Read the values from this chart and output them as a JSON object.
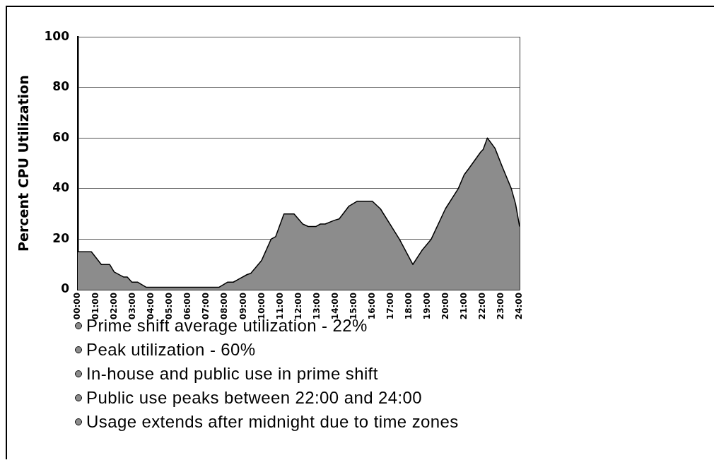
{
  "chart_data": {
    "type": "area",
    "ylabel": "Percent CPU Utilization",
    "x": [
      0,
      0.74,
      1.28,
      1.73,
      1.98,
      2.5,
      2.69,
      2.94,
      3.26,
      3.71,
      7.68,
      8.13,
      8.45,
      8.7,
      9.2,
      9.4,
      9.98,
      10.5,
      10.75,
      11.2,
      11.75,
      12.22,
      12.52,
      12.93,
      13.18,
      13.44,
      13.95,
      14.2,
      14.72,
      15.17,
      16.0,
      16.44,
      17.47,
      18.2,
      18.69,
      19.2,
      19.97,
      20.67,
      20.99,
      21.25,
      21.89,
      22.02,
      22.25,
      22.66,
      23.04,
      23.55,
      23.78,
      24
    ],
    "values": [
      15,
      15,
      10,
      10,
      7,
      5,
      5,
      3,
      3,
      1,
      1,
      3,
      3,
      4,
      6,
      6.5,
      11.5,
      20,
      21,
      30,
      30,
      26,
      25,
      25,
      26,
      26,
      27.5,
      28,
      33,
      35,
      35,
      32,
      20,
      10,
      15.5,
      20,
      32,
      40,
      45.5,
      48,
      54.5,
      55.5,
      60,
      56,
      49,
      40,
      34,
      25
    ],
    "color": "#8c8c8c",
    "xlim": [
      0,
      24
    ],
    "xticks": [
      {
        "value": 0,
        "label": "00:00"
      },
      {
        "value": 1,
        "label": "01:00"
      },
      {
        "value": 2,
        "label": "02:00"
      },
      {
        "value": 3,
        "label": "03:00"
      },
      {
        "value": 4,
        "label": "04:00"
      },
      {
        "value": 5,
        "label": "05:00"
      },
      {
        "value": 6,
        "label": "06:00"
      },
      {
        "value": 7,
        "label": "07:00"
      },
      {
        "value": 8,
        "label": "08:00"
      },
      {
        "value": 9,
        "label": "09:00"
      },
      {
        "value": 10,
        "label": "10:00"
      },
      {
        "value": 11,
        "label": "11:00"
      },
      {
        "value": 12,
        "label": "12:00"
      },
      {
        "value": 13,
        "label": "13:00"
      },
      {
        "value": 14,
        "label": "14:00"
      },
      {
        "value": 15,
        "label": "15:00"
      },
      {
        "value": 16,
        "label": "16:00"
      },
      {
        "value": 17,
        "label": "17:00"
      },
      {
        "value": 18,
        "label": "18:00"
      },
      {
        "value": 19,
        "label": "19:00"
      },
      {
        "value": 20,
        "label": "20:00"
      },
      {
        "value": 21,
        "label": "21:00"
      },
      {
        "value": 22,
        "label": "22:00"
      },
      {
        "value": 23,
        "label": "23:00"
      },
      {
        "value": 24,
        "label": "24:00"
      }
    ],
    "ylim": [
      0,
      100
    ],
    "yticks": [
      0,
      20,
      40,
      60,
      80,
      100
    ],
    "grid": "y",
    "legend": false,
    "annotations": [
      "Prime shift average utilization - 22%",
      "Peak utilization - 60%",
      "In-house and public use in prime shift",
      "Public use peaks between 22:00 and 24:00",
      "Usage extends after midnight due to time zones"
    ]
  }
}
